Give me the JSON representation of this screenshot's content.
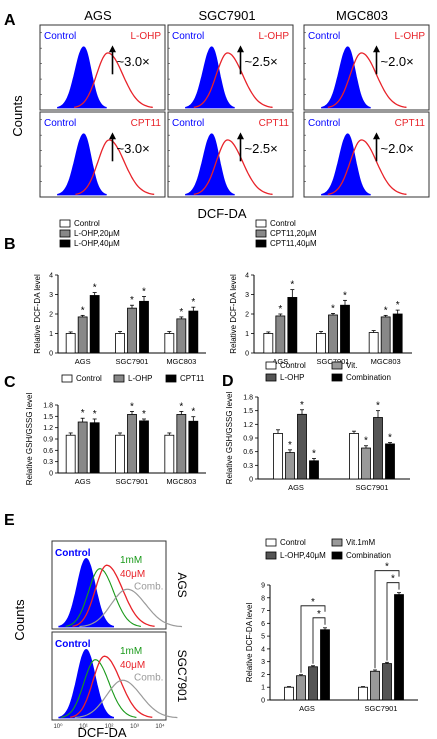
{
  "panels": {
    "A": {
      "letter": "A",
      "cols": [
        "AGS",
        "SGC7901",
        "MGC803"
      ],
      "ylabel": "Counts",
      "xlabel": "DCF-DA",
      "row1": {
        "control": "Control",
        "drug": "L-OHP",
        "folds": [
          "~3.0×",
          "~2.5×",
          "~2.0×"
        ]
      },
      "row2": {
        "control": "Control",
        "drug": "CPT11",
        "folds": [
          "~3.0×",
          "~2.5×",
          "~2.0×"
        ]
      }
    },
    "E_flow": {
      "letter": "E",
      "ylabel": "Counts",
      "xlabel": "DCF-DA",
      "rows": [
        {
          "cell": "AGS",
          "control": "Control",
          "vit": "1mM",
          "drug": "40μM",
          "comb": "Comb."
        },
        {
          "cell": "SGC7901",
          "control": "Control",
          "vit": "1mM",
          "drug": "40μM",
          "comb": "Comb."
        }
      ],
      "tick_labels": [
        "10⁰",
        "10¹",
        "10²",
        "10³",
        "10⁴"
      ]
    }
  },
  "colors": {
    "blue": "#0000ff",
    "red": "#e8232a",
    "green": "#1a9a1a",
    "gray": "#9a9a9a",
    "dark": "#555555"
  },
  "chart_data": [
    {
      "id": "B1",
      "letter": "B",
      "type": "bar",
      "ylabel": "Relative DCF-DA level",
      "categories": [
        "AGS",
        "SGC7901",
        "MGC803"
      ],
      "yticks": [
        "0",
        "1",
        "2",
        "3",
        "4"
      ],
      "ylim": [
        0,
        4
      ],
      "series": [
        {
          "name": "Control",
          "values": [
            1.0,
            1.0,
            1.0
          ],
          "errors": [
            0.08,
            0.1,
            0.1
          ]
        },
        {
          "name": "L-OHP,20μM",
          "values": [
            1.85,
            2.3,
            1.75
          ],
          "errors": [
            0.08,
            0.15,
            0.1
          ]
        },
        {
          "name": "L-OHP,40μM",
          "values": [
            2.95,
            2.65,
            2.15
          ],
          "errors": [
            0.15,
            0.25,
            0.2
          ]
        }
      ],
      "significance": [
        "*",
        "*",
        "*",
        "*",
        "*",
        "*"
      ]
    },
    {
      "id": "B2",
      "letter": "",
      "type": "bar",
      "ylabel": "Relative DCF-DA level",
      "categories": [
        "AGS",
        "SGC7901",
        "MGC803"
      ],
      "yticks": [
        "0",
        "1",
        "2",
        "3",
        "4"
      ],
      "ylim": [
        0,
        4
      ],
      "series": [
        {
          "name": "Control",
          "values": [
            1.0,
            1.0,
            1.05
          ],
          "errors": [
            0.08,
            0.1,
            0.1
          ]
        },
        {
          "name": "CPT11,20μM",
          "values": [
            1.9,
            1.95,
            1.85
          ],
          "errors": [
            0.1,
            0.08,
            0.08
          ]
        },
        {
          "name": "CPT11,40μM",
          "values": [
            2.85,
            2.45,
            2.0
          ],
          "errors": [
            0.4,
            0.25,
            0.2
          ]
        }
      ],
      "significance": [
        "*",
        "*",
        "*",
        "*",
        "*",
        "*"
      ]
    },
    {
      "id": "C",
      "letter": "C",
      "type": "bar",
      "ylabel": "Relative GSH/GSSG level",
      "categories": [
        "AGS",
        "SGC7901",
        "MGC803"
      ],
      "yticks": [
        "0",
        "0.3",
        "0.6",
        "0.9",
        "1.2",
        "1.5",
        "1.8"
      ],
      "ylim": [
        0,
        1.8
      ],
      "series": [
        {
          "name": "Control",
          "values": [
            1.0,
            1.0,
            1.0
          ],
          "errors": [
            0.06,
            0.06,
            0.06
          ]
        },
        {
          "name": "L-OHP",
          "values": [
            1.35,
            1.55,
            1.55
          ],
          "errors": [
            0.1,
            0.08,
            0.08
          ]
        },
        {
          "name": "CPT11",
          "values": [
            1.33,
            1.38,
            1.37
          ],
          "errors": [
            0.1,
            0.05,
            0.12
          ]
        }
      ],
      "significance": [
        "*",
        "*",
        "*",
        "*",
        "*",
        "*"
      ]
    },
    {
      "id": "D",
      "letter": "D",
      "type": "bar",
      "ylabel": "Relative GSH/GSSG level",
      "categories": [
        "AGS",
        "SGC7901"
      ],
      "yticks": [
        "0",
        "0.3",
        "0.6",
        "0.9",
        "1.2",
        "1.5",
        "1.8"
      ],
      "ylim": [
        0,
        1.8
      ],
      "series": [
        {
          "name": "Control",
          "values": [
            1.0,
            1.0
          ],
          "errors": [
            0.08,
            0.05
          ]
        },
        {
          "name": "Vit.",
          "values": [
            0.58,
            0.68
          ],
          "errors": [
            0.06,
            0.05
          ]
        },
        {
          "name": "L-OHP",
          "values": [
            1.42,
            1.35
          ],
          "errors": [
            0.1,
            0.15
          ]
        },
        {
          "name": "Combination",
          "values": [
            0.4,
            0.77
          ],
          "errors": [
            0.05,
            0.03
          ]
        }
      ],
      "significance": [
        "*",
        "*",
        "*",
        "*",
        "*",
        "*"
      ]
    },
    {
      "id": "E",
      "letter": "",
      "type": "bar",
      "ylabel": "Relative DCF-DA level",
      "categories": [
        "AGS",
        "SGC7901"
      ],
      "yticks": [
        "0",
        "1",
        "2",
        "3",
        "4",
        "5",
        "6",
        "7",
        "8",
        "9"
      ],
      "ylim": [
        0,
        9
      ],
      "series": [
        {
          "name": "Control",
          "values": [
            1.0,
            1.0
          ],
          "errors": [
            0.05,
            0.05
          ]
        },
        {
          "name": "Vit.1mM",
          "values": [
            1.9,
            2.25
          ],
          "errors": [
            0.08,
            0.1
          ]
        },
        {
          "name": "L-OHP,40μM",
          "values": [
            2.6,
            2.85
          ],
          "errors": [
            0.08,
            0.1
          ]
        },
        {
          "name": "Combination",
          "values": [
            5.5,
            8.25
          ],
          "errors": [
            0.15,
            0.15
          ]
        }
      ],
      "significance": [
        "*",
        "*",
        "*",
        "*"
      ]
    }
  ]
}
